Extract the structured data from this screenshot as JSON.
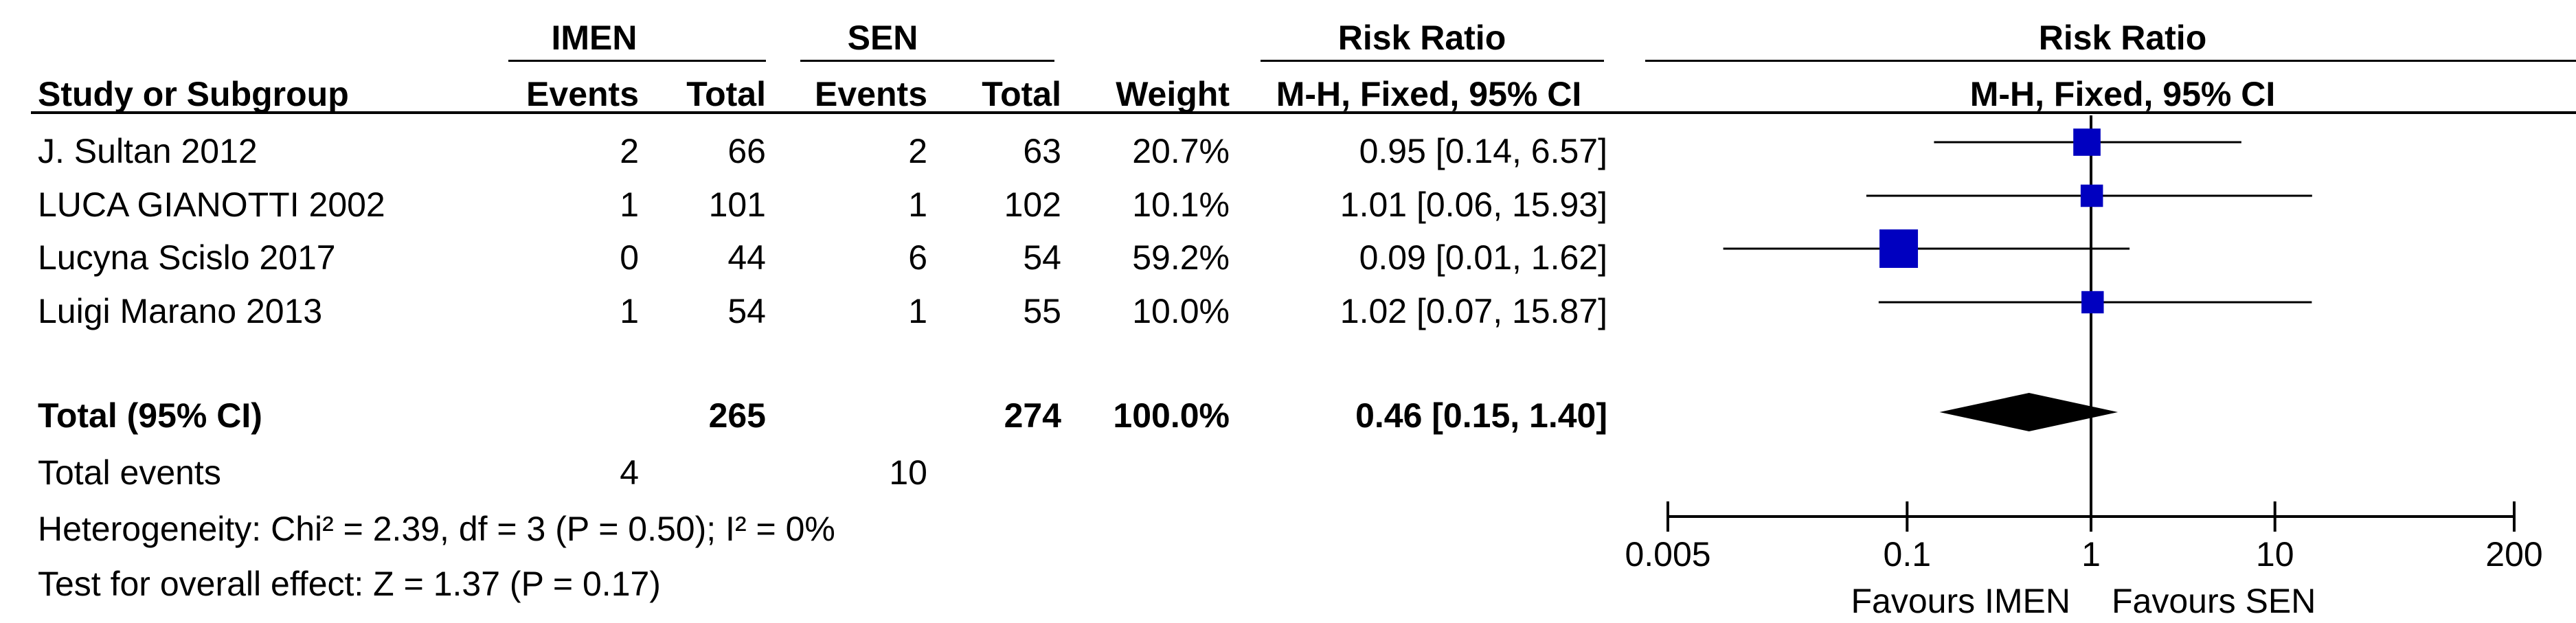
{
  "groups": {
    "left": "IMEN",
    "right": "SEN",
    "rr_table": "Risk Ratio",
    "rr_plot": "Risk Ratio"
  },
  "columns": {
    "study": "Study or Subgroup",
    "events_imen": "Events",
    "total_imen": "Total",
    "events_sen": "Events",
    "total_sen": "Total",
    "weight": "Weight",
    "method_table": "M-H, Fixed, 95% CI",
    "method_plot": "M-H, Fixed, 95% CI"
  },
  "studies": [
    {
      "name": "J. Sultan 2012",
      "e1": "2",
      "t1": "66",
      "e2": "2",
      "t2": "63",
      "weight": "20.7%",
      "ci": "0.95 [0.14, 6.57]"
    },
    {
      "name": "LUCA GIANOTTI 2002",
      "e1": "1",
      "t1": "101",
      "e2": "1",
      "t2": "102",
      "weight": "10.1%",
      "ci": "1.01 [0.06, 15.93]"
    },
    {
      "name": "Lucyna Scislo 2017",
      "e1": "0",
      "t1": "44",
      "e2": "6",
      "t2": "54",
      "weight": "59.2%",
      "ci": "0.09 [0.01, 1.62]"
    },
    {
      "name": "Luigi Marano 2013",
      "e1": "1",
      "t1": "54",
      "e2": "1",
      "t2": "55",
      "weight": "10.0%",
      "ci": "1.02 [0.07, 15.87]"
    }
  ],
  "total": {
    "label": "Total (95% CI)",
    "t1": "265",
    "t2": "274",
    "weight": "100.0%",
    "ci": "0.46 [0.15, 1.40]"
  },
  "events": {
    "label": "Total events",
    "e1": "4",
    "e2": "10"
  },
  "heterogeneity": "Heterogeneity: Chi² = 2.39, df = 3 (P = 0.50); I² = 0%",
  "overall": "Test for overall effect: Z = 1.37 (P = 0.17)",
  "favours": {
    "left": "Favours IMEN",
    "right": "Favours SEN"
  },
  "chart_data": {
    "type": "forest",
    "x_scale": "log",
    "xlim": [
      0.005,
      200
    ],
    "ticks": [
      0.005,
      0.1,
      1,
      10,
      200
    ],
    "tick_labels": [
      "0.005",
      "0.1",
      "1",
      "10",
      "200"
    ],
    "null_line": 1,
    "marker_color": "#0000c0",
    "studies": [
      {
        "rr": 0.95,
        "lo": 0.14,
        "hi": 6.57,
        "weight": 20.7
      },
      {
        "rr": 1.01,
        "lo": 0.06,
        "hi": 15.93,
        "weight": 10.1
      },
      {
        "rr": 0.09,
        "lo": 0.01,
        "hi": 1.62,
        "weight": 59.2
      },
      {
        "rr": 1.02,
        "lo": 0.07,
        "hi": 15.87,
        "weight": 10.0
      }
    ],
    "pooled": {
      "rr": 0.46,
      "lo": 0.15,
      "hi": 1.4
    }
  }
}
